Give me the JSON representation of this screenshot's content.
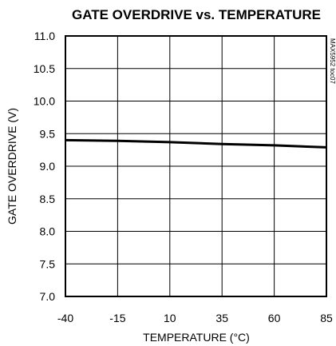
{
  "chart_data": {
    "type": "line",
    "title": "GATE OVERDRIVE vs. TEMPERATURE",
    "xlabel": "TEMPERATURE (°C)",
    "ylabel": "GATE OVERDRIVE (V)",
    "watermark": "MAX5952 toc07",
    "xlim": [
      -40,
      85
    ],
    "ylim": [
      7.0,
      11.0
    ],
    "x_ticks": [
      -40,
      -15,
      10,
      35,
      60,
      85
    ],
    "x_tick_labels": [
      "-40",
      "-15",
      "10",
      "35",
      "60",
      "85"
    ],
    "y_ticks": [
      7.0,
      7.5,
      8.0,
      8.5,
      9.0,
      9.5,
      10.0,
      10.5,
      11.0
    ],
    "y_tick_labels": [
      "7.0",
      "7.5",
      "8.0",
      "8.5",
      "9.0",
      "9.5",
      "10.0",
      "10.5",
      "11.0"
    ],
    "grid": true,
    "series": [
      {
        "x": [
          -40,
          -15,
          10,
          35,
          60,
          85
        ],
        "y": [
          9.4,
          9.39,
          9.37,
          9.34,
          9.32,
          9.29
        ]
      }
    ]
  }
}
